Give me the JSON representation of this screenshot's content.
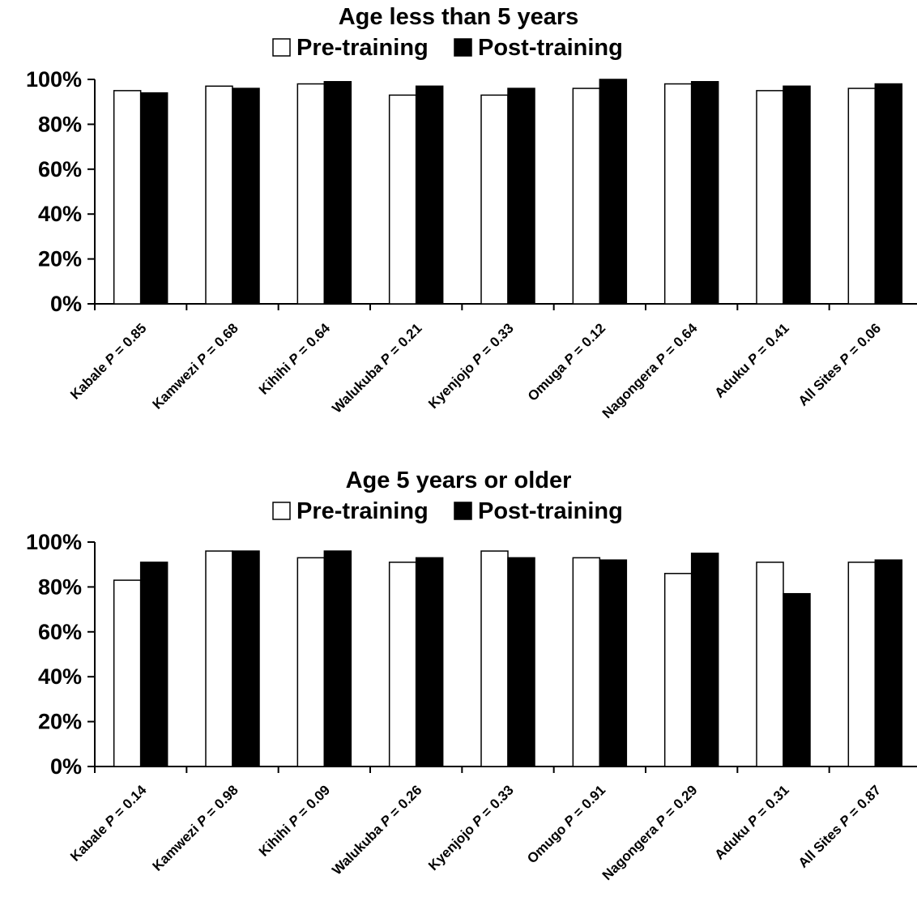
{
  "chart_data": [
    {
      "type": "bar",
      "title": "Age less than 5 years",
      "categories": [
        "Kabale",
        "Kamwezi",
        "Kihihi",
        "Walukuba",
        "Kyenjojo",
        "Omuga",
        "Nagongera",
        "Aduku",
        "All Sites"
      ],
      "p_values": [
        "0.85",
        "0.68",
        "0.64",
        "0.21",
        "0.33",
        "0.12",
        "0.64",
        "0.41",
        "0.06"
      ],
      "p_label": "P",
      "series": [
        {
          "name": "Pre-training",
          "color": "#ffffff",
          "values": [
            95,
            97,
            98,
            93,
            93,
            96,
            98,
            95,
            96
          ]
        },
        {
          "name": "Post-training",
          "color": "#000000",
          "values": [
            94,
            96,
            99,
            97,
            96,
            100,
            99,
            97,
            98
          ]
        }
      ],
      "ylim": [
        0,
        100
      ],
      "yticks": [
        "0%",
        "20%",
        "40%",
        "60%",
        "80%",
        "100%"
      ],
      "legend_position": "top",
      "grid": false
    },
    {
      "type": "bar",
      "title": "Age 5 years or older",
      "categories": [
        "Kabale",
        "Kamwezi",
        "Kihihi",
        "Walukuba",
        "Kyenjojo",
        "Omugo",
        "Nagongera",
        "Aduku",
        "All Sites"
      ],
      "p_values": [
        "0.14",
        "0.98",
        "0.09",
        "0.26",
        "0.33",
        "0.91",
        "0.29",
        "0.31",
        "0.87"
      ],
      "p_label": "P",
      "series": [
        {
          "name": "Pre-training",
          "color": "#ffffff",
          "values": [
            83,
            96,
            93,
            91,
            96,
            93,
            86,
            91,
            91
          ]
        },
        {
          "name": "Post-training",
          "color": "#000000",
          "values": [
            91,
            96,
            96,
            93,
            93,
            92,
            95,
            77,
            92
          ]
        }
      ],
      "ylim": [
        0,
        100
      ],
      "yticks": [
        "0%",
        "20%",
        "40%",
        "60%",
        "80%",
        "100%"
      ],
      "legend_position": "top",
      "grid": false
    }
  ]
}
